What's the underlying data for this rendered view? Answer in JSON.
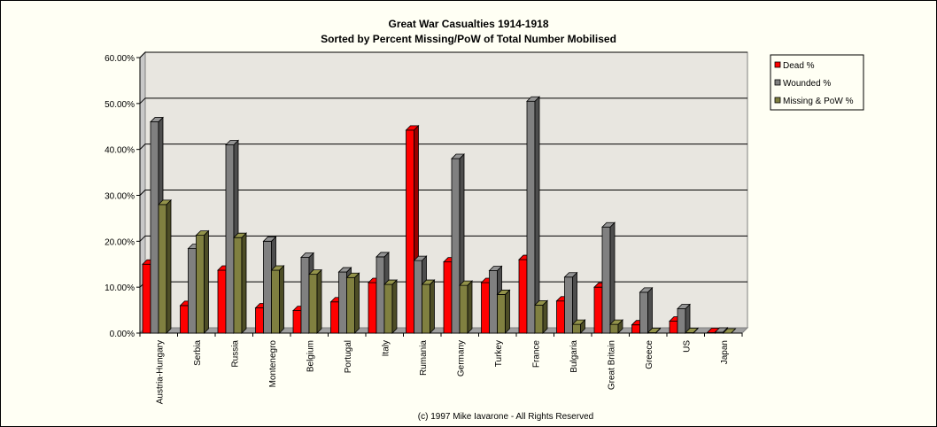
{
  "chart_data": {
    "type": "bar",
    "title": "Great War Casualties 1914-1918",
    "subtitle": "Sorted by Percent Missing/PoW of Total Number Mobilised",
    "footer": "(c) 1997 Mike Iavarone - All Rights Reserved",
    "categories": [
      "Austria-Hungary",
      "Serbia",
      "Russia",
      "Montenegro",
      "Belgium",
      "Portugal",
      "Italy",
      "Rumania",
      "Germany",
      "Turkey",
      "France",
      "Bulgaria",
      "Great Britain",
      "Greece",
      "US",
      "Japan"
    ],
    "series": [
      {
        "name": "Dead %",
        "color": "#ff0000",
        "values": [
          15.0,
          6.0,
          13.7,
          5.5,
          4.9,
          6.8,
          11.0,
          44.2,
          15.5,
          11.0,
          16.0,
          7.0,
          10.0,
          1.8,
          2.6,
          0.1
        ]
      },
      {
        "name": "Wounded %",
        "color": "#808080",
        "values": [
          46.0,
          18.4,
          41.0,
          20.0,
          16.5,
          13.3,
          16.6,
          15.8,
          38.0,
          13.6,
          50.5,
          12.2,
          23.1,
          8.9,
          5.3,
          0.2
        ]
      },
      {
        "name": "Missing & PoW %",
        "color": "#808040",
        "values": [
          28.0,
          21.3,
          20.8,
          13.7,
          12.8,
          12.1,
          10.6,
          10.6,
          10.4,
          8.4,
          6.1,
          1.9,
          1.9,
          0.1,
          0.1,
          0.0
        ]
      }
    ],
    "yticks": [
      "0.00%",
      "10.00%",
      "20.00%",
      "30.00%",
      "40.00%",
      "50.00%",
      "60.00%"
    ],
    "ylim": [
      0,
      60
    ],
    "grid": true,
    "legend_position": "right"
  }
}
